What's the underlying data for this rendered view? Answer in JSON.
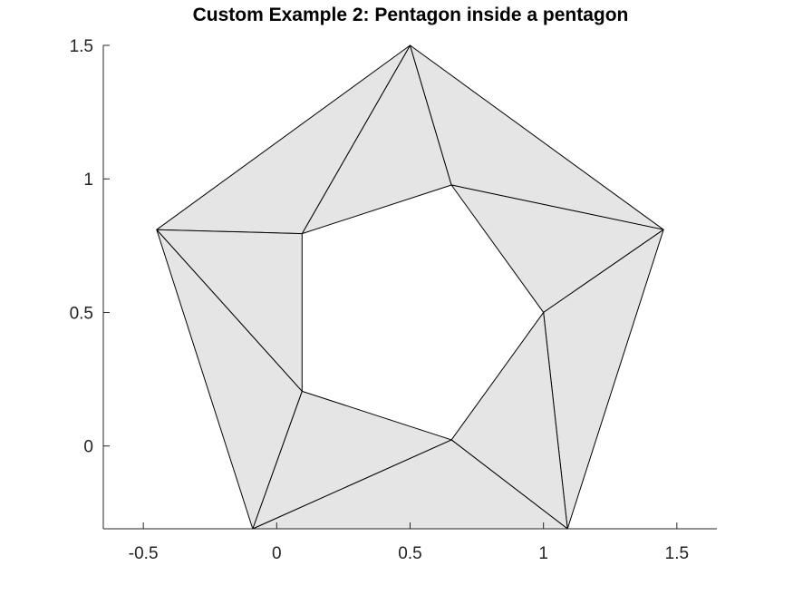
{
  "chart_data": {
    "type": "triangulation",
    "title": "Custom Example 2: Pentagon inside a pentagon",
    "xlabel": "",
    "ylabel": "",
    "xlim": [
      -0.65,
      1.65
    ],
    "ylim": [
      -0.31,
      1.5
    ],
    "xticks": [
      -0.5,
      0,
      0.5,
      1,
      1.5
    ],
    "xtick_labels": [
      "-0.5",
      "0",
      "0.5",
      "1",
      "1.5"
    ],
    "yticks": [
      0,
      0.5,
      1,
      1.5
    ],
    "ytick_labels": [
      "0",
      "0.5",
      "1",
      "1.5"
    ],
    "grid": false,
    "fill_color": "#e5e5e5",
    "edge_color": "#000000",
    "vertices": [
      [
        0.5,
        1.5
      ],
      [
        1.45,
        0.81
      ],
      [
        1.09,
        -0.31
      ],
      [
        -0.09,
        -0.31
      ],
      [
        -0.45,
        0.81
      ],
      [
        0.655,
        0.977
      ],
      [
        1.0,
        0.5
      ],
      [
        0.655,
        0.023
      ],
      [
        0.095,
        0.205
      ],
      [
        0.095,
        0.795
      ]
    ],
    "triangles": [
      [
        0,
        9,
        5
      ],
      [
        0,
        4,
        9
      ],
      [
        0,
        5,
        1
      ],
      [
        5,
        6,
        1
      ],
      [
        1,
        6,
        2
      ],
      [
        6,
        7,
        2
      ],
      [
        2,
        7,
        3
      ],
      [
        7,
        8,
        3
      ],
      [
        3,
        8,
        4
      ],
      [
        8,
        9,
        4
      ]
    ]
  }
}
